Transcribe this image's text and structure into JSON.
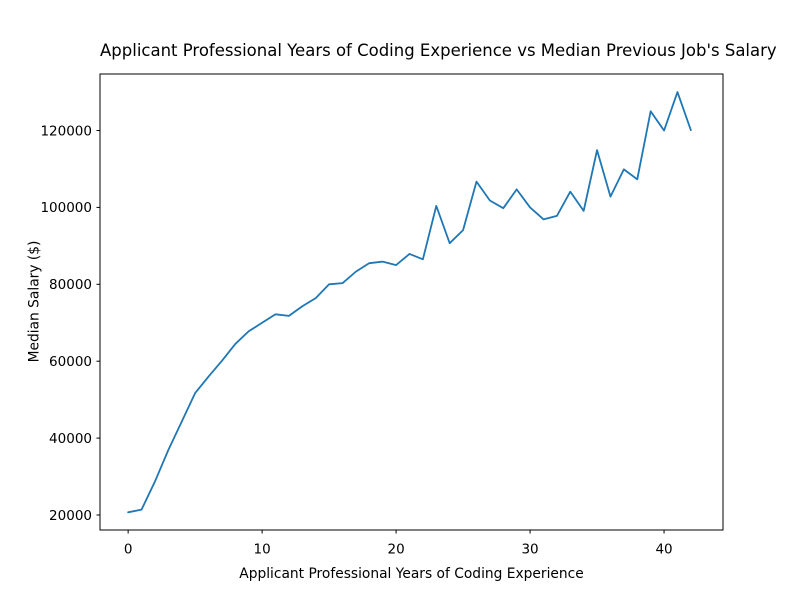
{
  "chart_data": {
    "type": "line",
    "title": "Applicant Professional Years of Coding Experience vs Median Previous Job's Salary",
    "xlabel": "Applicant Professional Years of Coding Experience",
    "ylabel": "Median Salary ($)",
    "x": [
      0,
      1,
      2,
      3,
      4,
      5,
      6,
      7,
      8,
      9,
      10,
      11,
      12,
      13,
      14,
      15,
      16,
      17,
      18,
      19,
      20,
      21,
      22,
      23,
      24,
      25,
      26,
      27,
      28,
      29,
      30,
      31,
      32,
      33,
      34,
      35,
      36,
      37,
      38,
      39,
      40,
      41,
      42
    ],
    "y": [
      20700,
      21400,
      28700,
      36900,
      44300,
      51700,
      56000,
      60100,
      64500,
      67800,
      70000,
      72200,
      71800,
      74300,
      76400,
      80000,
      80300,
      83300,
      85500,
      85900,
      85000,
      87900,
      86500,
      100400,
      90700,
      94100,
      106700,
      101800,
      99800,
      104700,
      100000,
      96900,
      97800,
      104100,
      99100,
      114900,
      102800,
      109900,
      107300,
      125000,
      120000,
      130000,
      120100
    ],
    "xticks": [
      0,
      10,
      20,
      30,
      40
    ],
    "yticks": [
      20000,
      40000,
      60000,
      80000,
      100000,
      120000
    ],
    "xlim": [
      -2.1,
      44.4
    ],
    "ylim": [
      16100,
      134700
    ],
    "grid": false,
    "legend_position": "none",
    "line_color": "#1f77b4",
    "axis_color": "#000000",
    "background_color": "#ffffff"
  }
}
